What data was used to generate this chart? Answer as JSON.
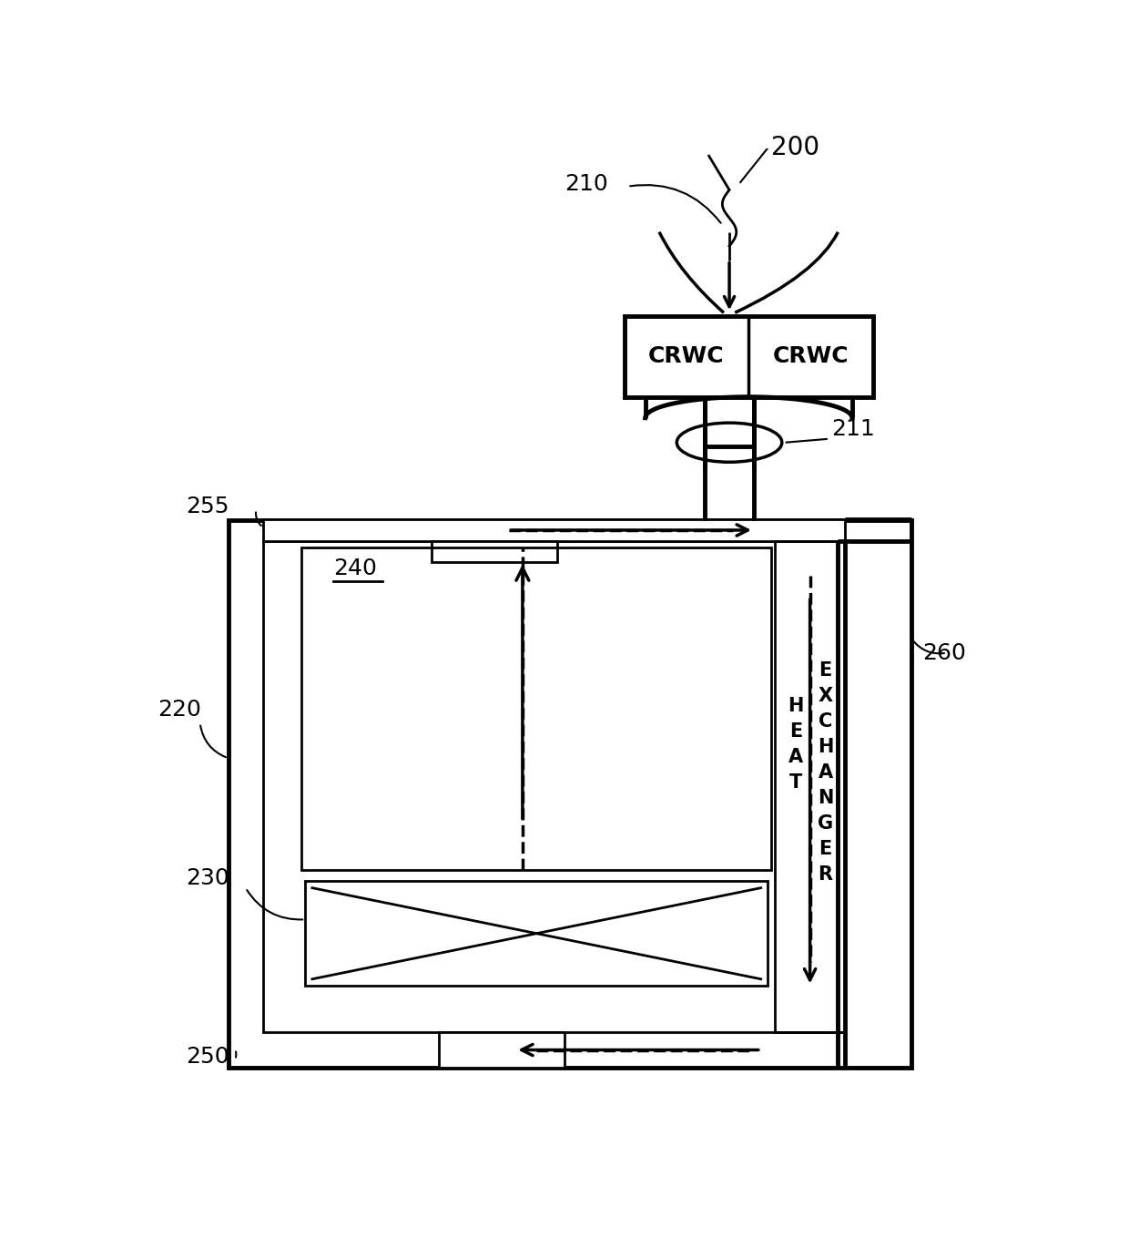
{
  "bg_color": "#ffffff",
  "lc": "#000000",
  "lw": 2.0,
  "lw_thick": 3.5,
  "figsize": [
    12.4,
    13.59
  ],
  "dpi": 100,
  "crwc_text": "CRWC",
  "label_200": "200",
  "label_210": "210",
  "label_211": "211",
  "label_220": "220",
  "label_230": "230",
  "label_240": "240",
  "label_250": "250",
  "label_255": "255",
  "label_260": "260",
  "fs_label": 18,
  "fs_crwc": 15,
  "fs_240": 18,
  "fs_hx": 14
}
